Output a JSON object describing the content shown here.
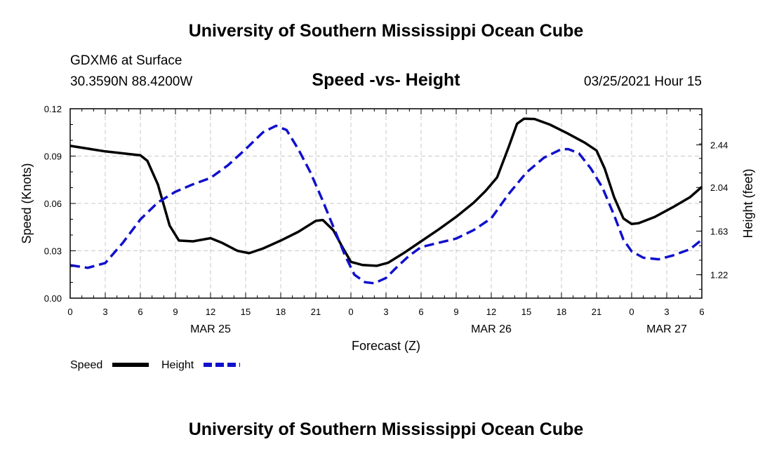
{
  "page": {
    "top_title": "University of Southern Mississippi Ocean Cube",
    "bottom_title": "University of Southern Mississippi Ocean Cube",
    "station": "GDXM6 at Surface",
    "coords": "30.3590N 88.4200W",
    "datetime": "03/25/2021 Hour 15"
  },
  "chart_data": {
    "type": "line",
    "title": "Speed -vs- Height",
    "xlabel": "Forecast (Z)",
    "ylabel": "Speed (Knots)",
    "y2label": "Height (feet)",
    "xlim": [
      0,
      54
    ],
    "ylim": [
      0,
      0.12
    ],
    "y2lim": [
      1.0,
      2.78
    ],
    "x_ticks": [
      0,
      3,
      6,
      9,
      12,
      15,
      18,
      21,
      24,
      27,
      30,
      33,
      36,
      39,
      42,
      45,
      48,
      51,
      54
    ],
    "x_tick_labels": [
      "0",
      "3",
      "6",
      "9",
      "12",
      "15",
      "18",
      "21",
      "0",
      "3",
      "6",
      "9",
      "12",
      "15",
      "18",
      "21",
      "0",
      "3",
      "6"
    ],
    "day_labels": [
      {
        "x": 12,
        "label": "MAR 25"
      },
      {
        "x": 36,
        "label": "MAR 26"
      },
      {
        "x": 51,
        "label": "MAR 27"
      }
    ],
    "y_ticks": [
      0,
      0.03,
      0.06,
      0.09,
      0.12
    ],
    "y_tick_labels": [
      "0.00",
      "0.03",
      "0.06",
      "0.09",
      "0.12"
    ],
    "y2_ticks": [
      1.22,
      1.63,
      2.04,
      2.44
    ],
    "y2_tick_labels": [
      "1.22",
      "1.63",
      "2.04",
      "2.44"
    ],
    "grid": true,
    "legend": [
      {
        "name": "Speed",
        "color": "#000000",
        "dash": "solid"
      },
      {
        "name": "Height",
        "color": "#1010cc",
        "dash": "dashed"
      }
    ],
    "series": [
      {
        "name": "Speed",
        "axis": "left",
        "color": "#000000",
        "x": [
          0,
          3,
          6,
          6.6,
          7.5,
          8.5,
          9.3,
          10.5,
          12,
          13,
          14.3,
          15.3,
          16.5,
          18,
          19.5,
          21,
          21.6,
          22.5,
          23.3,
          24,
          25,
          26.2,
          27.2,
          28.5,
          30,
          31.5,
          33,
          34.5,
          35.5,
          36.5,
          37.5,
          38.2,
          38.8,
          39.7,
          41,
          42.5,
          44,
          45,
          45.7,
          46.5,
          47.3,
          48,
          48.6,
          50,
          51.5,
          53,
          54
        ],
        "values": [
          0.0965,
          0.093,
          0.0905,
          0.087,
          0.072,
          0.046,
          0.0365,
          0.036,
          0.038,
          0.035,
          0.03,
          0.0285,
          0.0315,
          0.0365,
          0.042,
          0.049,
          0.0495,
          0.043,
          0.032,
          0.023,
          0.021,
          0.0205,
          0.0225,
          0.0285,
          0.036,
          0.0435,
          0.0515,
          0.0605,
          0.0678,
          0.0765,
          0.096,
          0.1105,
          0.1137,
          0.1135,
          0.11,
          0.1045,
          0.0985,
          0.0935,
          0.082,
          0.064,
          0.0505,
          0.047,
          0.0475,
          0.0515,
          0.0575,
          0.064,
          0.0705
        ]
      },
      {
        "name": "Height",
        "axis": "right",
        "color": "#1010cc",
        "x": [
          0,
          1.5,
          3,
          4.5,
          6,
          7.5,
          9,
          10.5,
          12,
          13.5,
          15,
          16.5,
          17.6,
          18.5,
          19.5,
          20.5,
          21.5,
          22.5,
          23.5,
          24.3,
          25.2,
          26,
          27,
          28,
          29,
          30,
          31.5,
          33,
          34.5,
          36,
          37.5,
          39,
          40.5,
          42,
          42.6,
          43.5,
          44.5,
          45.5,
          46.5,
          47.3,
          48,
          49,
          50.3,
          51.5,
          53,
          54
        ],
        "values": [
          1.31,
          1.285,
          1.33,
          1.52,
          1.74,
          1.9,
          2.0,
          2.07,
          2.13,
          2.25,
          2.4,
          2.56,
          2.62,
          2.58,
          2.4,
          2.19,
          1.94,
          1.67,
          1.4,
          1.22,
          1.15,
          1.14,
          1.19,
          1.3,
          1.4,
          1.48,
          1.52,
          1.56,
          1.64,
          1.75,
          1.98,
          2.18,
          2.32,
          2.4,
          2.4,
          2.36,
          2.22,
          2.04,
          1.78,
          1.55,
          1.44,
          1.38,
          1.365,
          1.4,
          1.46,
          1.55
        ]
      }
    ]
  }
}
